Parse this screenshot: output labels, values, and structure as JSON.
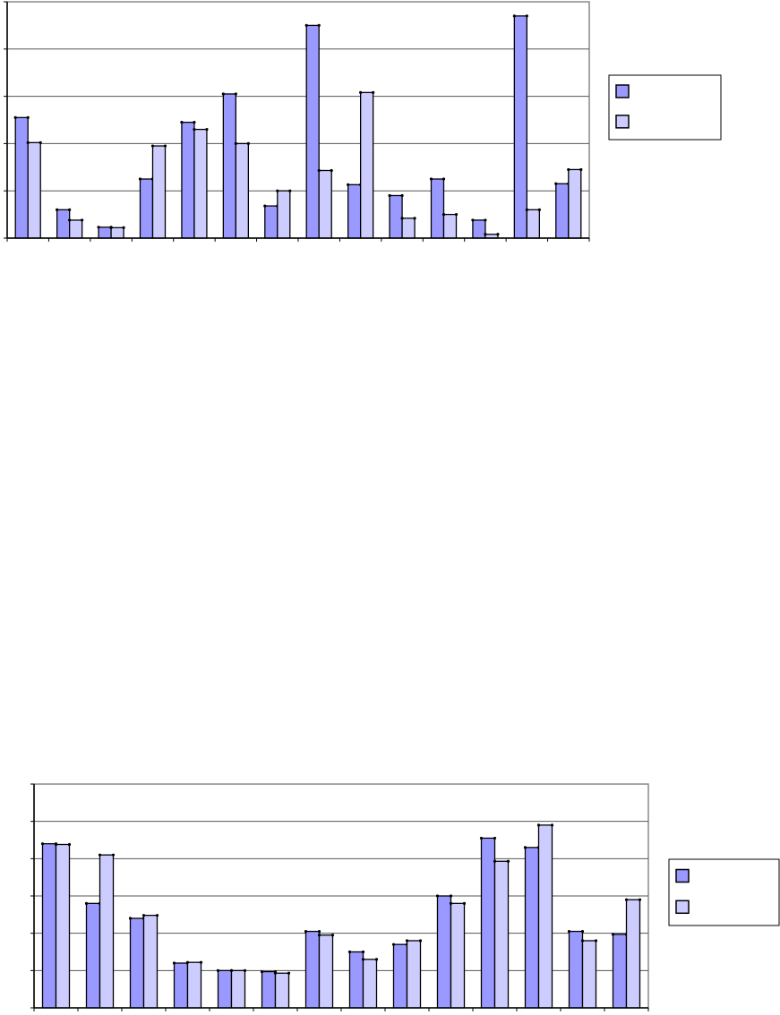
{
  "chart_data": [
    {
      "type": "bar",
      "title": "",
      "xlabel": "",
      "ylabel": "",
      "categories": [
        "",
        "",
        "",
        "",
        "",
        "",
        "",
        "",
        "",
        "",
        "",
        "",
        "",
        ""
      ],
      "ylim": [
        0,
        5
      ],
      "grid": true,
      "legend_position": "right",
      "colors": [
        "#9999ff",
        "#ccccff"
      ],
      "series": [
        {
          "values": [
            2.55,
            0.6,
            0.23,
            1.25,
            2.45,
            3.05,
            0.68,
            4.5,
            1.13,
            0.9,
            1.25,
            0.38,
            4.7,
            1.15
          ]
        },
        {
          "values": [
            2.02,
            0.38,
            0.22,
            1.95,
            2.3,
            2.0,
            1.0,
            1.43,
            3.08,
            0.42,
            0.5,
            0.08,
            0.6,
            1.45
          ]
        }
      ]
    },
    {
      "type": "bar",
      "title": "",
      "xlabel": "",
      "ylabel": "",
      "categories": [
        "",
        "",
        "",
        "",
        "",
        "",
        "",
        "",
        "",
        "",
        "",
        "",
        "",
        ""
      ],
      "ylim": [
        0,
        6
      ],
      "grid": true,
      "legend_position": "right",
      "colors": [
        "#9999ff",
        "#ccccff"
      ],
      "series": [
        {
          "values": [
            4.4,
            2.8,
            2.4,
            1.2,
            1.0,
            0.97,
            2.05,
            1.5,
            1.7,
            3.0,
            4.55,
            4.3,
            2.05,
            1.97
          ]
        },
        {
          "values": [
            4.38,
            4.1,
            2.48,
            1.22,
            1.0,
            0.93,
            1.95,
            1.3,
            1.8,
            2.8,
            3.93,
            4.9,
            1.8,
            2.9
          ]
        }
      ]
    }
  ]
}
